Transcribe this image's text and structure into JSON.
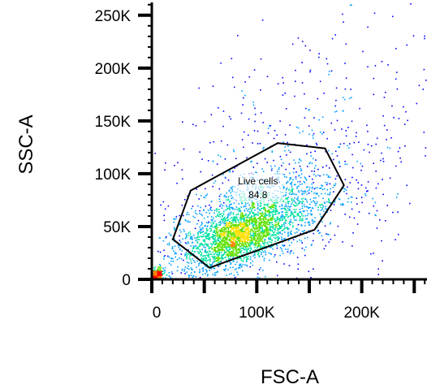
{
  "chart_data": {
    "type": "scatter",
    "xlabel": "FSC-A",
    "ylabel": "SSC-A",
    "xlim": [
      0,
      262144
    ],
    "ylim": [
      0,
      262144
    ],
    "x_ticks": [
      {
        "value": 0,
        "label": "0"
      },
      {
        "value": 100000,
        "label": "100K"
      },
      {
        "value": 200000,
        "label": "200K"
      }
    ],
    "y_ticks": [
      {
        "value": 0,
        "label": "0"
      },
      {
        "value": 50000,
        "label": "50K"
      },
      {
        "value": 100000,
        "label": "100K"
      },
      {
        "value": 150000,
        "label": "150K"
      },
      {
        "value": 200000,
        "label": "200K"
      },
      {
        "value": 250000,
        "label": "250K"
      }
    ],
    "density_colormap": [
      "#0000ff",
      "#00a0ff",
      "#00e0a0",
      "#60e000",
      "#ffe000",
      "#ff8000",
      "#ff0000"
    ],
    "populations": [
      {
        "center": [
          82000,
          40000
        ],
        "spread": [
          22000,
          12000
        ],
        "count": 1400
      },
      {
        "center": [
          95000,
          55000
        ],
        "spread": [
          42000,
          22000
        ],
        "count": 1700
      },
      {
        "center": [
          4000,
          4000
        ],
        "spread": [
          3500,
          3500
        ],
        "count": 260
      },
      {
        "center": [
          140000,
          110000
        ],
        "spread": [
          70000,
          60000
        ],
        "count": 550
      }
    ],
    "gate": {
      "name": "Live cells",
      "value": "84.8",
      "vertices": [
        [
          37000,
          84000
        ],
        [
          120000,
          129000
        ],
        [
          165000,
          124000
        ],
        [
          183000,
          89000
        ],
        [
          155000,
          47000
        ],
        [
          55000,
          11000
        ],
        [
          20000,
          38000
        ]
      ],
      "stroke": "#000000"
    }
  }
}
